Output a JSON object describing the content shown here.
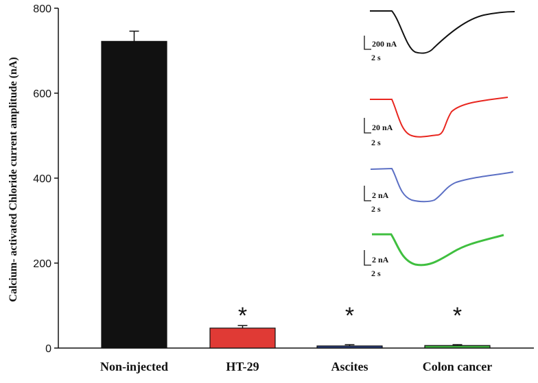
{
  "chart_data": {
    "type": "bar",
    "title": "",
    "xlabel": "",
    "ylabel": "Calcium- activated Chloride current amplitude (nA)",
    "ylim": [
      0,
      800
    ],
    "yticks": [
      0,
      200,
      400,
      600,
      800
    ],
    "grid": false,
    "categories": [
      "Non-injected",
      "HT-29",
      "Ascites",
      "Colon cancer"
    ],
    "values": [
      722,
      47,
      5,
      6
    ],
    "errors": [
      24,
      6,
      3,
      2
    ],
    "colors": [
      "#111111",
      "#e03a35",
      "#2b3f80",
      "#3fae3f"
    ],
    "significance": [
      "",
      "*",
      "*",
      "*"
    ],
    "insets": [
      {
        "color": "#111111",
        "current_scale": "200 nA",
        "time_scale": "2 s"
      },
      {
        "color": "#e8261f",
        "current_scale": "20 nA",
        "time_scale": "2 s"
      },
      {
        "color": "#5b6fc4",
        "current_scale": "2 nA",
        "time_scale": "2 s"
      },
      {
        "color": "#3fbf3f",
        "current_scale": "2 nA",
        "time_scale": "2 s"
      }
    ]
  }
}
